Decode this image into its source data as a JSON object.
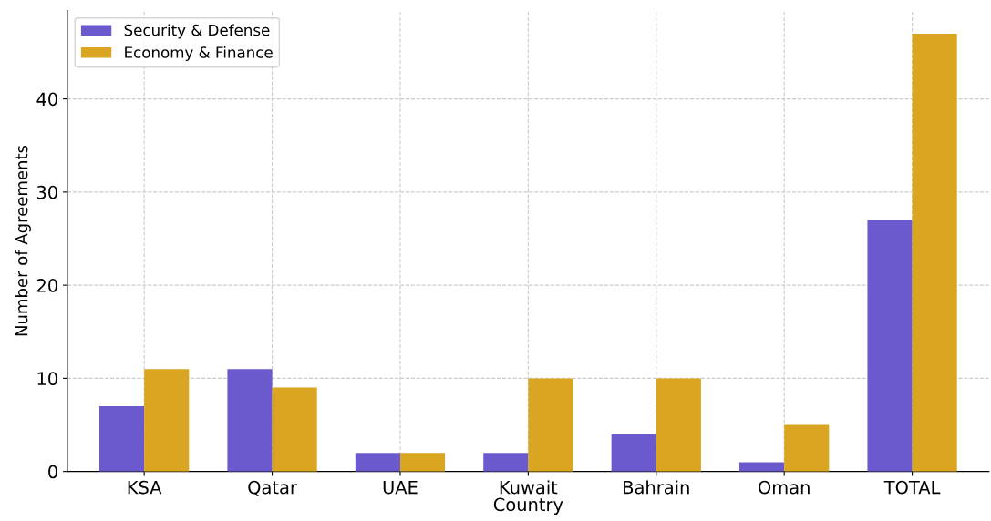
{
  "chart_data": {
    "type": "bar",
    "xlabel": "Country",
    "ylabel": "Number of Agreements",
    "categories": [
      "KSA",
      "Qatar",
      "UAE",
      "Kuwait",
      "Bahrain",
      "Oman",
      "TOTAL"
    ],
    "series": [
      {
        "name": "Security & Defense",
        "color": "#6a5acd",
        "values": [
          7,
          11,
          2,
          2,
          4,
          1,
          27
        ]
      },
      {
        "name": "Economy & Finance",
        "color": "#daa520",
        "values": [
          11,
          9,
          2,
          10,
          10,
          5,
          47
        ]
      }
    ],
    "ylim": [
      0,
      49.5
    ],
    "yticks": [
      0,
      10,
      20,
      30,
      40
    ],
    "grid": true,
    "legend": "top left"
  }
}
